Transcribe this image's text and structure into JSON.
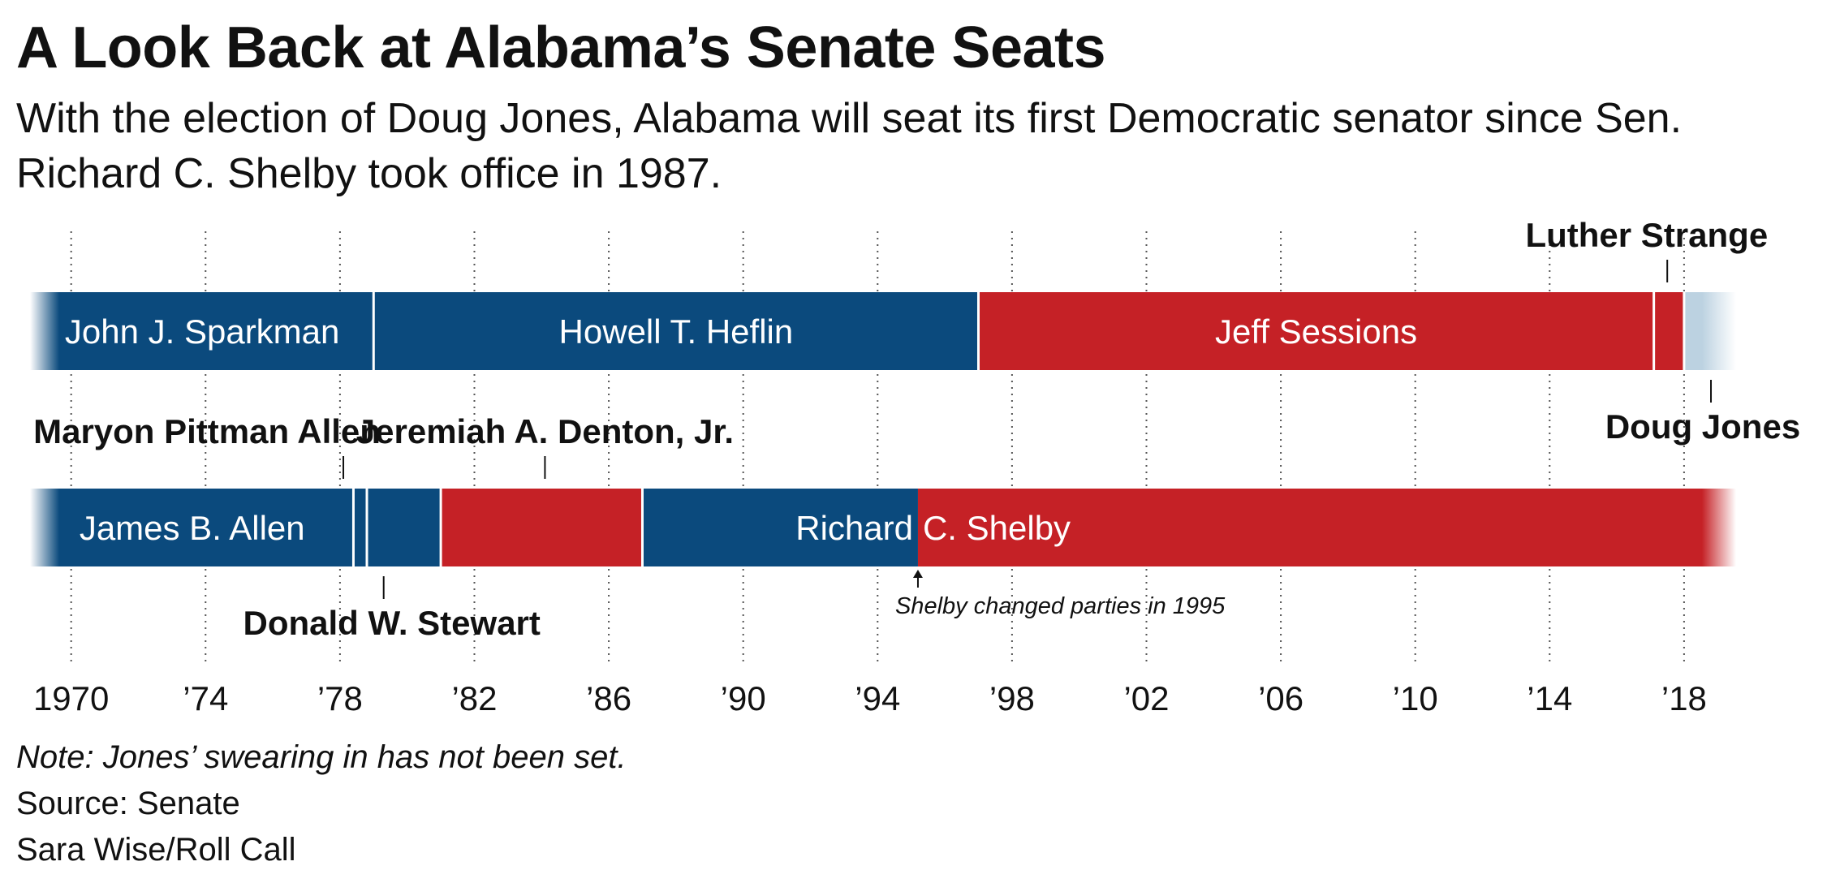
{
  "title": "A Look Back at Alabama’s Senate Seats",
  "subtitle": "With the election of Doug Jones, Alabama will seat its first Democratic senator since Sen. Richard C. Shelby took office in 1987.",
  "footer": {
    "note": "Note: Jones’ swearing in has not been set.",
    "source": "Source: Senate",
    "credit": "Sara Wise/Roll Call"
  },
  "colors": {
    "democrat": "#0b4a7d",
    "republican": "#c52126",
    "pending": "#bcd2e1"
  },
  "chart_data": {
    "type": "timeline",
    "xlim": [
      1968.8,
      2019.5
    ],
    "tick_years": [
      1970,
      1974,
      1978,
      1982,
      1986,
      1990,
      1994,
      1998,
      2002,
      2006,
      2010,
      2014,
      2018
    ],
    "tick_labels": [
      "1970",
      "’74",
      "’78",
      "’82",
      "’86",
      "’90",
      "’94",
      "’98",
      "’02",
      "’06",
      "’10",
      "’14",
      "’18"
    ],
    "grid": true,
    "seats": [
      {
        "terms": [
          {
            "name": "John J. Sparkman",
            "start": 1968.8,
            "end": 1979.0,
            "party": "democrat",
            "label": "John J. Sparkman",
            "label_placement": "inside"
          },
          {
            "name": "Howell T. Heflin",
            "start": 1979.0,
            "end": 1997.0,
            "party": "democrat",
            "label": "Howell T. Heflin",
            "label_placement": "inside"
          },
          {
            "name": "Jeff Sessions",
            "start": 1997.0,
            "end": 2017.1,
            "party": "republican",
            "label": "Jeff Sessions",
            "label_placement": "inside"
          },
          {
            "name": "Luther Strange",
            "start": 2017.1,
            "end": 2018.0,
            "party": "republican",
            "label": "Luther Strange",
            "label_placement": "above",
            "leader_year": 2017.5
          },
          {
            "name": "Doug Jones",
            "start": 2018.0,
            "end": 2019.5,
            "party": "pending",
            "label": "Doug Jones",
            "label_placement": "below",
            "leader_year": 2018.8
          }
        ]
      },
      {
        "terms": [
          {
            "name": "James B. Allen",
            "start": 1968.8,
            "end": 1978.4,
            "party": "democrat",
            "label": "James B. Allen",
            "label_placement": "inside"
          },
          {
            "name": "Maryon Pittman Allen",
            "start": 1978.4,
            "end": 1978.8,
            "party": "democrat",
            "label": "Maryon Pittman Allen",
            "label_placement": "above",
            "leader_year": 1978.1
          },
          {
            "name": "Donald W. Stewart",
            "start": 1978.8,
            "end": 1981.0,
            "party": "democrat",
            "label": "Donald W. Stewart",
            "label_placement": "below",
            "leader_year": 1979.3
          },
          {
            "name": "Jeremiah A. Denton, Jr.",
            "start": 1981.0,
            "end": 1987.0,
            "party": "republican",
            "label": "Jeremiah A. Denton, Jr.",
            "label_placement": "above",
            "leader_year": 1984.1
          },
          {
            "name": "Richard C. Shelby",
            "start": 1987.0,
            "end": 1995.2,
            "party": "democrat",
            "label": "Richard",
            "label_placement": "inside-right"
          },
          {
            "name": "Richard C. Shelby",
            "start": 1995.2,
            "end": 2019.5,
            "party": "republican",
            "label": "C. Shelby",
            "label_placement": "inside-left"
          }
        ]
      }
    ],
    "annotations": [
      {
        "text": "Shelby changed parties in 1995",
        "year": 1995.2
      }
    ]
  }
}
